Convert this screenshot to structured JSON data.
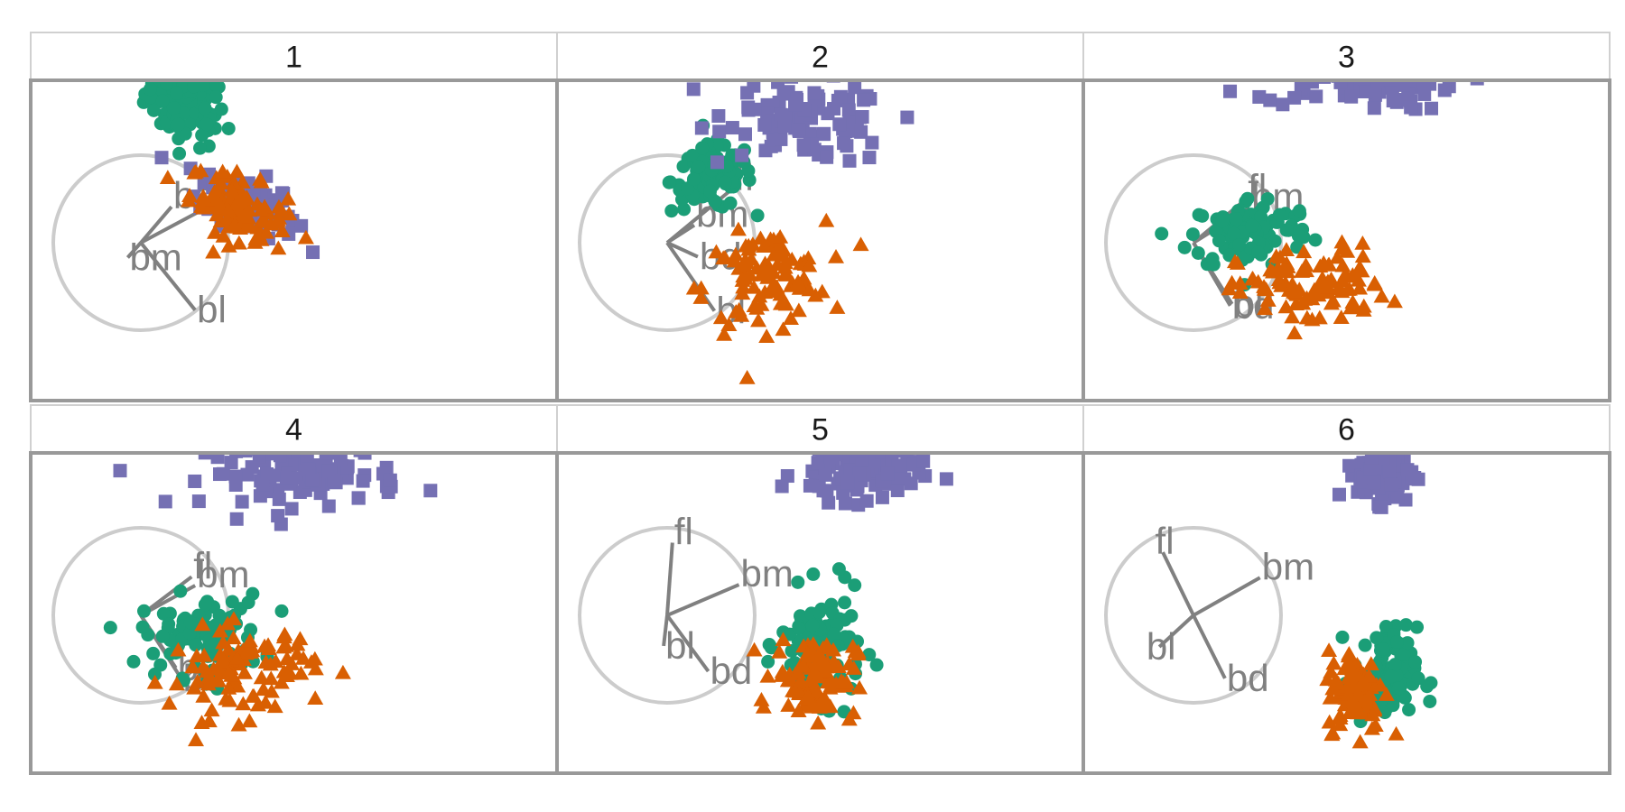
{
  "chart_data": {
    "type": "scatter",
    "description_type": "faceted tour projections with biplot axes",
    "facets": [
      {
        "label": "1",
        "axes": [
          {
            "name": "fl",
            "dir": [
              0.88,
              -0.47
            ]
          },
          {
            "name": "bd",
            "dir": [
              0.35,
              -0.41
            ]
          },
          {
            "name": "bm",
            "dir": [
              -0.15,
              0.17
            ]
          },
          {
            "name": "bl",
            "dir": [
              0.62,
              0.77
            ]
          }
        ],
        "groups": [
          {
            "cx": 0.22,
            "cy": 0.68,
            "sx": 0.1,
            "sy": 0.1,
            "rho": -0.3
          },
          {
            "cx": 0.52,
            "cy": 0.2,
            "sx": 0.12,
            "sy": 0.08,
            "rho": -0.5
          },
          {
            "cx": 0.48,
            "cy": 0.17,
            "sx": 0.12,
            "sy": 0.09,
            "rho": -0.5
          }
        ]
      },
      {
        "label": "2",
        "axes": [
          {
            "name": "fl",
            "dir": [
              0.75,
              -0.62
            ]
          },
          {
            "name": "bm",
            "dir": [
              0.31,
              -0.2
            ]
          },
          {
            "name": "bd",
            "dir": [
              0.35,
              0.16
            ]
          },
          {
            "name": "bl",
            "dir": [
              0.54,
              0.78
            ]
          }
        ],
        "groups": [
          {
            "cx": 0.22,
            "cy": 0.32,
            "sx": 0.1,
            "sy": 0.08,
            "rho": 0.1
          },
          {
            "cx": 0.7,
            "cy": 0.6,
            "sx": 0.2,
            "sy": 0.1,
            "rho": -0.2
          },
          {
            "cx": 0.48,
            "cy": -0.18,
            "sx": 0.15,
            "sy": 0.12,
            "rho": 0.2
          }
        ]
      },
      {
        "label": "3",
        "axes": [
          {
            "name": "fl",
            "dir": [
              0.6,
              -0.5
            ]
          },
          {
            "name": "bm",
            "dir": [
              0.64,
              -0.4
            ]
          },
          {
            "name": "bd",
            "dir": [
              0.42,
              0.72
            ]
          },
          {
            "name": "bl",
            "dir": [
              0.44,
              0.7
            ]
          }
        ],
        "groups": [
          {
            "cx": 0.28,
            "cy": 0.05,
            "sx": 0.15,
            "sy": 0.09,
            "rho": 0.1
          },
          {
            "cx": 0.8,
            "cy": 0.82,
            "sx": 0.25,
            "sy": 0.08,
            "rho": -0.1
          },
          {
            "cx": 0.58,
            "cy": -0.22,
            "sx": 0.18,
            "sy": 0.1,
            "rho": 0.1
          }
        ]
      },
      {
        "label": "4",
        "axes": [
          {
            "name": "fl",
            "dir": [
              0.58,
              -0.44
            ]
          },
          {
            "name": "bm",
            "dir": [
              0.62,
              -0.34
            ]
          },
          {
            "name": "bl",
            "dir": [
              0.4,
              0.6
            ]
          },
          {
            "name": "bd",
            "dir": [
              0.46,
              0.72
            ]
          }
        ],
        "groups": [
          {
            "cx": 0.3,
            "cy": -0.1,
            "sx": 0.15,
            "sy": 0.1,
            "rho": 0.0
          },
          {
            "cx": 0.8,
            "cy": 0.7,
            "sx": 0.24,
            "sy": 0.08,
            "rho": 0.0
          },
          {
            "cx": 0.5,
            "cy": -0.28,
            "sx": 0.18,
            "sy": 0.11,
            "rho": 0.1
          }
        ]
      },
      {
        "label": "5",
        "axes": [
          {
            "name": "fl",
            "dir": [
              0.06,
              -0.83
            ]
          },
          {
            "name": "bm",
            "dir": [
              0.82,
              -0.35
            ]
          },
          {
            "name": "bl",
            "dir": [
              -0.04,
              0.35
            ]
          },
          {
            "name": "bd",
            "dir": [
              0.47,
              0.64
            ]
          }
        ],
        "groups": [
          {
            "cx": 0.76,
            "cy": -0.15,
            "sx": 0.1,
            "sy": 0.13,
            "rho": 0.0
          },
          {
            "cx": 0.93,
            "cy": 0.7,
            "sx": 0.15,
            "sy": 0.07,
            "rho": 0.0
          },
          {
            "cx": 0.73,
            "cy": -0.3,
            "sx": 0.1,
            "sy": 0.1,
            "rho": 0.0
          }
        ]
      },
      {
        "label": "6",
        "axes": [
          {
            "name": "fl",
            "dir": [
              -0.35,
              -0.72
            ]
          },
          {
            "name": "bm",
            "dir": [
              0.76,
              -0.43
            ]
          },
          {
            "name": "bl",
            "dir": [
              -0.39,
              0.36
            ]
          },
          {
            "name": "bd",
            "dir": [
              0.36,
              0.72
            ]
          }
        ],
        "groups": [
          {
            "cx": 0.94,
            "cy": -0.3,
            "sx": 0.08,
            "sy": 0.12,
            "rho": 0.0
          },
          {
            "cx": 0.95,
            "cy": 0.7,
            "sx": 0.07,
            "sy": 0.07,
            "rho": 0.0
          },
          {
            "cx": 0.8,
            "cy": -0.37,
            "sx": 0.07,
            "sy": 0.1,
            "rho": 0.0
          }
        ]
      }
    ],
    "series": [
      {
        "shape": "circle",
        "color": "#1B9E77",
        "n": 100
      },
      {
        "shape": "square",
        "color": "#7570B3",
        "n": 100
      },
      {
        "shape": "triangle",
        "color": "#D95F02",
        "n": 100
      }
    ],
    "legend": "none",
    "grid": false
  },
  "colors": {
    "panel_border": "#999999",
    "strip_border": "#d0d0d0",
    "axis_circle": "#cccccc",
    "axis_line": "#808080",
    "axis_text": "#808080"
  }
}
